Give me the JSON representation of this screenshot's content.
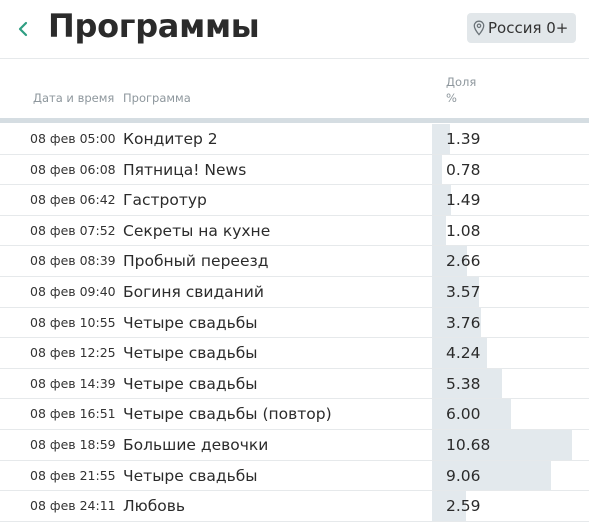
{
  "header": {
    "title": "Программы",
    "region": "Россия 0+",
    "accent_color": "#2f9e82"
  },
  "columns": {
    "datetime": "Дата и время",
    "program": "Программа",
    "share": "Доля %"
  },
  "max_share": 12,
  "rows": [
    {
      "datetime": "08 фев 05:00",
      "program": "Кондитер 2",
      "share": "1.39"
    },
    {
      "datetime": "08 фев 06:08",
      "program": "Пятница! News",
      "share": "0.78"
    },
    {
      "datetime": "08 фев 06:42",
      "program": "Гастротур",
      "share": "1.49"
    },
    {
      "datetime": "08 фев 07:52",
      "program": "Секреты на кухне",
      "share": "1.08"
    },
    {
      "datetime": "08 фев 08:39",
      "program": "Пробный переезд",
      "share": "2.66"
    },
    {
      "datetime": "08 фев 09:40",
      "program": "Богиня свиданий",
      "share": "3.57"
    },
    {
      "datetime": "08 фев 10:55",
      "program": "Четыре свадьбы",
      "share": "3.76"
    },
    {
      "datetime": "08 фев 12:25",
      "program": "Четыре свадьбы",
      "share": "4.24"
    },
    {
      "datetime": "08 фев 14:39",
      "program": "Четыре свадьбы",
      "share": "5.38"
    },
    {
      "datetime": "08 фев 16:51",
      "program": "Четыре свадьбы (повтор)",
      "share": "6.00"
    },
    {
      "datetime": "08 фев 18:59",
      "program": "Большие девочки",
      "share": "10.68"
    },
    {
      "datetime": "08 фев 21:55",
      "program": "Четыре свадьбы",
      "share": "9.06"
    },
    {
      "datetime": "08 фев 24:11",
      "program": "Любовь",
      "share": "2.59"
    }
  ]
}
